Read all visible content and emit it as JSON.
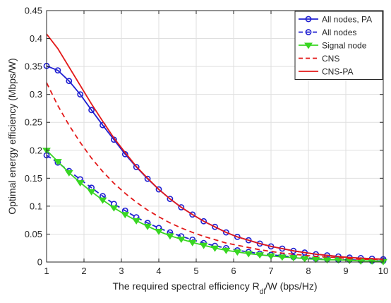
{
  "chart_data": {
    "type": "line",
    "title": "",
    "xlabel": "The required spectral efficiency R",
    "xlabel_subscript": "dl",
    "xlabel_suffix": "/W (bps/Hz)",
    "ylabel": "Optimal energy efficiency (Mbps/W)",
    "xlim": [
      1,
      10
    ],
    "ylim": [
      0,
      0.45
    ],
    "xticks": [
      "1",
      "2",
      "3",
      "4",
      "5",
      "6",
      "7",
      "8",
      "9",
      "10"
    ],
    "yticks": [
      "0",
      "0.05",
      "0.1",
      "0.15",
      "0.2",
      "0.25",
      "0.3",
      "0.35",
      "0.4",
      "0.45"
    ],
    "grid": true,
    "legend_position": "top-right",
    "x": [
      1.0,
      1.3,
      1.6,
      1.9,
      2.2,
      2.5,
      2.8,
      3.1,
      3.4,
      3.7,
      4.0,
      4.3,
      4.6,
      4.9,
      5.2,
      5.5,
      5.8,
      6.1,
      6.4,
      6.7,
      7.0,
      7.3,
      7.6,
      7.9,
      8.2,
      8.5,
      8.8,
      9.1,
      9.4,
      9.7,
      10.0
    ],
    "series": [
      {
        "name": "All nodes, PA",
        "color": "#1f1fd1",
        "line": "solid",
        "marker": "circle",
        "values": [
          0.351,
          0.343,
          0.324,
          0.3,
          0.272,
          0.245,
          0.219,
          0.193,
          0.17,
          0.149,
          0.13,
          0.113,
          0.098,
          0.085,
          0.073,
          0.063,
          0.053,
          0.045,
          0.039,
          0.033,
          0.028,
          0.024,
          0.02,
          0.017,
          0.014,
          0.012,
          0.01,
          0.008,
          0.007,
          0.006,
          0.005
        ]
      },
      {
        "name": "All nodes",
        "color": "#1f1fd1",
        "line": "dashed",
        "marker": "circle",
        "values": [
          0.191,
          0.178,
          0.163,
          0.148,
          0.133,
          0.118,
          0.104,
          0.092,
          0.08,
          0.07,
          0.061,
          0.053,
          0.046,
          0.04,
          0.034,
          0.029,
          0.025,
          0.021,
          0.018,
          0.015,
          0.013,
          0.011,
          0.009,
          0.008,
          0.006,
          0.005,
          0.004,
          0.004,
          0.003,
          0.002,
          0.002
        ]
      },
      {
        "name": "Signal node",
        "color": "#39d622",
        "line": "solid",
        "marker": "triangle-down",
        "values": [
          0.2,
          0.18,
          0.16,
          0.142,
          0.126,
          0.111,
          0.097,
          0.085,
          0.074,
          0.064,
          0.055,
          0.047,
          0.041,
          0.035,
          0.03,
          0.025,
          0.021,
          0.018,
          0.015,
          0.013,
          0.011,
          0.009,
          0.008,
          0.006,
          0.005,
          0.004,
          0.004,
          0.003,
          0.002,
          0.002,
          0.001
        ]
      },
      {
        "name": "CNS",
        "color": "#e31a1a",
        "line": "dashed",
        "marker": "none",
        "values": [
          0.321,
          0.28,
          0.245,
          0.214,
          0.186,
          0.162,
          0.141,
          0.123,
          0.107,
          0.093,
          0.081,
          0.07,
          0.061,
          0.053,
          0.046,
          0.04,
          0.034,
          0.03,
          0.026,
          0.022,
          0.019,
          0.016,
          0.014,
          0.012,
          0.01,
          0.009,
          0.008,
          0.006,
          0.005,
          0.005,
          0.004
        ]
      },
      {
        "name": "CNS-PA",
        "color": "#e31a1a",
        "line": "solid",
        "marker": "none",
        "values": [
          0.408,
          0.382,
          0.349,
          0.316,
          0.283,
          0.252,
          0.222,
          0.196,
          0.171,
          0.15,
          0.13,
          0.113,
          0.098,
          0.085,
          0.073,
          0.063,
          0.053,
          0.045,
          0.039,
          0.033,
          0.028,
          0.024,
          0.02,
          0.017,
          0.014,
          0.012,
          0.01,
          0.008,
          0.007,
          0.006,
          0.005
        ]
      }
    ]
  }
}
